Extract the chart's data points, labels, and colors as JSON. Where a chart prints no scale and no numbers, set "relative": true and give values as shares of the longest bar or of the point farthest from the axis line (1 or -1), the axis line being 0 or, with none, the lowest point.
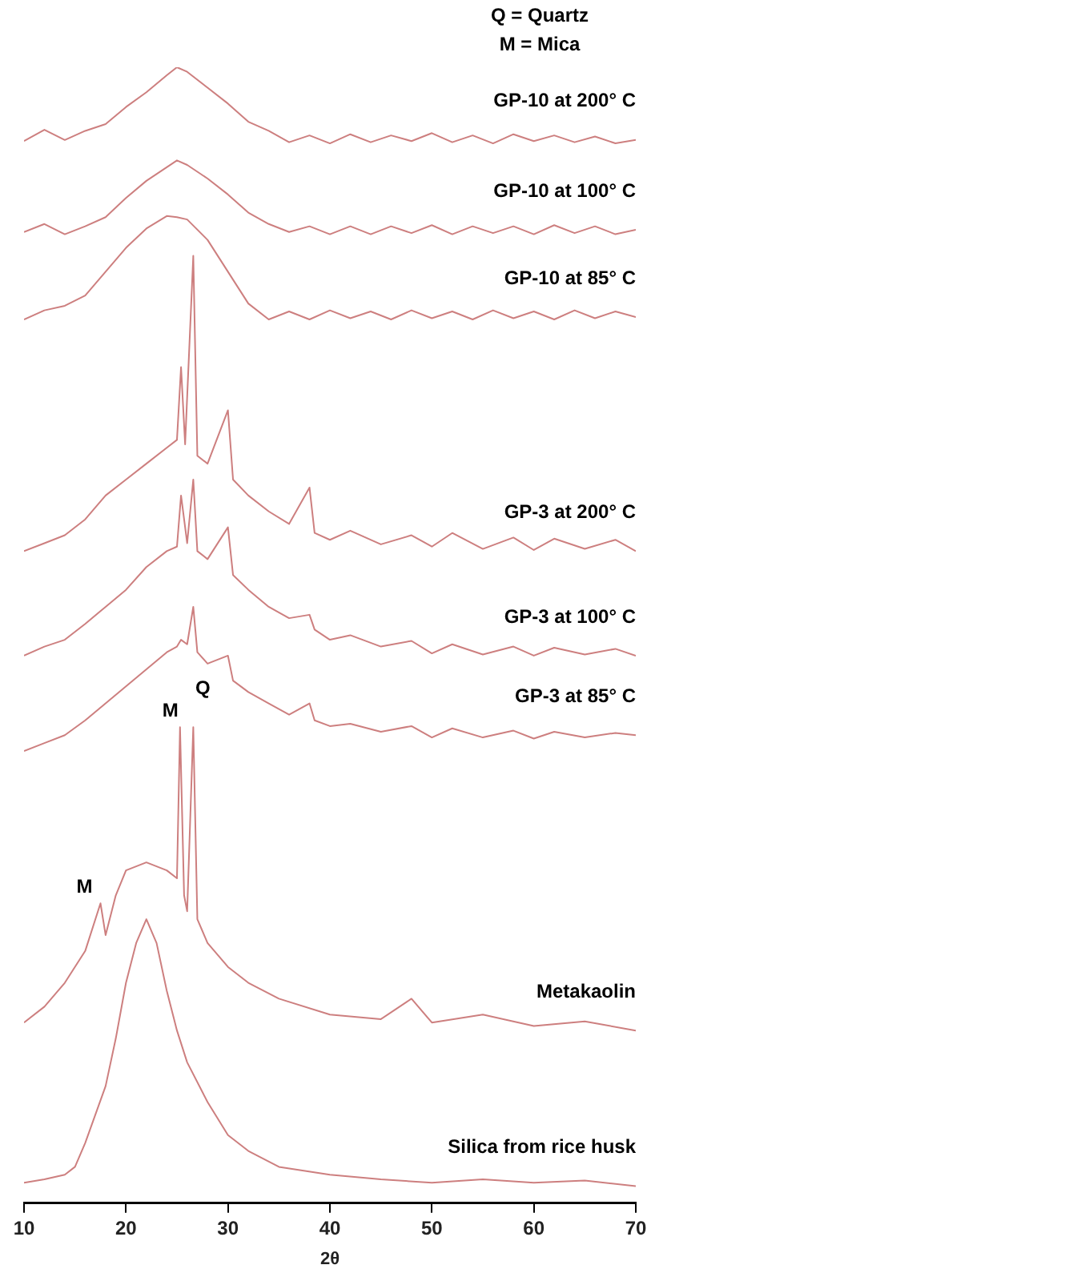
{
  "chart_data": {
    "type": "line",
    "relative": true,
    "xlabel": "2θ",
    "xlim": [
      10,
      70
    ],
    "xticks": [
      10,
      20,
      30,
      40,
      50,
      60,
      70
    ],
    "grid": false,
    "legend": false,
    "marker": "none",
    "line_style": "solid",
    "annotations": [
      "Q = Quartz",
      "M = Mica",
      {
        "text": "M",
        "x": 17.5,
        "y": 0.264
      },
      {
        "text": "M",
        "x": 25.3,
        "y": 0.419
      },
      {
        "text": "Q",
        "x": 26.6,
        "y": 0.419
      }
    ],
    "series": [
      {
        "name": "GP-10 at 200° C",
        "color": "#cd7f7f",
        "x": [
          10,
          12,
          14,
          16,
          18,
          20,
          22,
          24,
          25,
          26,
          28,
          30,
          32,
          34,
          36,
          38,
          40,
          42,
          44,
          46,
          48,
          50,
          52,
          54,
          56,
          58,
          60,
          62,
          64,
          66,
          68,
          70
        ],
        "values": [
          0.935,
          0.945,
          0.936,
          0.944,
          0.95,
          0.965,
          0.978,
          0.993,
          1.0,
          0.996,
          0.982,
          0.968,
          0.952,
          0.944,
          0.934,
          0.94,
          0.933,
          0.941,
          0.934,
          0.94,
          0.935,
          0.942,
          0.934,
          0.94,
          0.933,
          0.941,
          0.935,
          0.94,
          0.934,
          0.939,
          0.933,
          0.936
        ]
      },
      {
        "name": "GP-10 at 100° C",
        "color": "#cd7f7f",
        "x": [
          10,
          12,
          14,
          16,
          18,
          20,
          22,
          24,
          25,
          26,
          28,
          30,
          32,
          34,
          36,
          38,
          40,
          42,
          44,
          46,
          48,
          50,
          52,
          54,
          56,
          58,
          60,
          62,
          64,
          66,
          68,
          70
        ],
        "values": [
          0.855,
          0.862,
          0.853,
          0.86,
          0.868,
          0.885,
          0.9,
          0.912,
          0.918,
          0.914,
          0.902,
          0.888,
          0.872,
          0.862,
          0.855,
          0.86,
          0.853,
          0.86,
          0.853,
          0.86,
          0.854,
          0.861,
          0.853,
          0.86,
          0.854,
          0.86,
          0.853,
          0.861,
          0.854,
          0.86,
          0.853,
          0.857
        ]
      },
      {
        "name": "GP-10 at 85° C",
        "color": "#cd7f7f",
        "x": [
          10,
          12,
          14,
          16,
          18,
          20,
          22,
          24,
          25,
          26,
          28,
          30,
          32,
          34,
          36,
          38,
          40,
          42,
          44,
          46,
          48,
          50,
          52,
          54,
          56,
          58,
          60,
          62,
          64,
          66,
          68,
          70
        ],
        "values": [
          0.778,
          0.786,
          0.79,
          0.799,
          0.82,
          0.841,
          0.858,
          0.869,
          0.868,
          0.866,
          0.848,
          0.82,
          0.792,
          0.778,
          0.785,
          0.778,
          0.786,
          0.779,
          0.785,
          0.778,
          0.786,
          0.779,
          0.785,
          0.778,
          0.786,
          0.779,
          0.785,
          0.778,
          0.786,
          0.779,
          0.785,
          0.78
        ]
      },
      {
        "name": "GP-3 at 200° C",
        "color": "#cd7f7f",
        "x": [
          10,
          12,
          14,
          16,
          18,
          20,
          22,
          24,
          25,
          25.4,
          25.8,
          26.6,
          27,
          28,
          30,
          30.5,
          32,
          34,
          36,
          38,
          38.5,
          40,
          42,
          45,
          48,
          50,
          52,
          55,
          58,
          60,
          62,
          65,
          68,
          70
        ],
        "values": [
          0.574,
          0.581,
          0.588,
          0.602,
          0.623,
          0.637,
          0.651,
          0.665,
          0.672,
          0.736,
          0.668,
          0.834,
          0.658,
          0.651,
          0.698,
          0.637,
          0.623,
          0.609,
          0.598,
          0.63,
          0.59,
          0.584,
          0.592,
          0.58,
          0.588,
          0.578,
          0.59,
          0.576,
          0.586,
          0.575,
          0.585,
          0.576,
          0.584,
          0.574
        ]
      },
      {
        "name": "GP-3 at 100° C",
        "color": "#cd7f7f",
        "x": [
          10,
          12,
          14,
          16,
          18,
          20,
          22,
          24,
          25,
          25.4,
          26,
          26.6,
          27,
          28,
          30,
          30.5,
          32,
          34,
          36,
          38,
          38.5,
          40,
          42,
          45,
          48,
          50,
          52,
          55,
          58,
          60,
          62,
          65,
          68,
          70
        ],
        "values": [
          0.482,
          0.49,
          0.496,
          0.51,
          0.525,
          0.54,
          0.56,
          0.574,
          0.578,
          0.623,
          0.581,
          0.637,
          0.574,
          0.567,
          0.595,
          0.553,
          0.54,
          0.525,
          0.515,
          0.518,
          0.505,
          0.496,
          0.5,
          0.49,
          0.495,
          0.484,
          0.492,
          0.483,
          0.49,
          0.482,
          0.489,
          0.483,
          0.488,
          0.482
        ]
      },
      {
        "name": "GP-3 at 85° C",
        "color": "#cd7f7f",
        "x": [
          10,
          12,
          14,
          16,
          18,
          20,
          22,
          24,
          25,
          25.4,
          26,
          26.6,
          27,
          28,
          30,
          30.5,
          32,
          34,
          36,
          38,
          38.5,
          40,
          42,
          45,
          48,
          50,
          52,
          55,
          58,
          60,
          62,
          65,
          68,
          70
        ],
        "values": [
          0.398,
          0.405,
          0.412,
          0.425,
          0.44,
          0.455,
          0.47,
          0.485,
          0.49,
          0.496,
          0.492,
          0.525,
          0.485,
          0.475,
          0.482,
          0.46,
          0.45,
          0.44,
          0.43,
          0.44,
          0.425,
          0.42,
          0.422,
          0.415,
          0.42,
          0.41,
          0.418,
          0.41,
          0.416,
          0.409,
          0.415,
          0.41,
          0.414,
          0.412
        ]
      },
      {
        "name": "Metakaolin",
        "color": "#cd7f7f",
        "x": [
          10,
          12,
          14,
          16,
          17.5,
          18,
          19,
          20,
          22,
          24,
          25,
          25.3,
          25.7,
          26,
          26.6,
          27,
          28,
          30,
          32,
          35,
          40,
          45,
          48,
          50,
          55,
          60,
          65,
          70
        ],
        "values": [
          0.159,
          0.173,
          0.194,
          0.222,
          0.264,
          0.236,
          0.271,
          0.293,
          0.3,
          0.293,
          0.286,
          0.419,
          0.271,
          0.257,
          0.419,
          0.25,
          0.229,
          0.208,
          0.194,
          0.18,
          0.166,
          0.162,
          0.18,
          0.159,
          0.166,
          0.156,
          0.16,
          0.152
        ]
      },
      {
        "name": "Silica from rice husk",
        "color": "#cd7f7f",
        "x": [
          10,
          12,
          14,
          15,
          16,
          18,
          19,
          20,
          21,
          22,
          23,
          24,
          25,
          26,
          28,
          30,
          32,
          35,
          40,
          45,
          50,
          55,
          60,
          65,
          70
        ],
        "values": [
          0.018,
          0.021,
          0.025,
          0.032,
          0.053,
          0.103,
          0.145,
          0.194,
          0.229,
          0.25,
          0.229,
          0.187,
          0.152,
          0.124,
          0.089,
          0.06,
          0.046,
          0.032,
          0.025,
          0.021,
          0.018,
          0.021,
          0.018,
          0.02,
          0.015
        ]
      }
    ]
  }
}
